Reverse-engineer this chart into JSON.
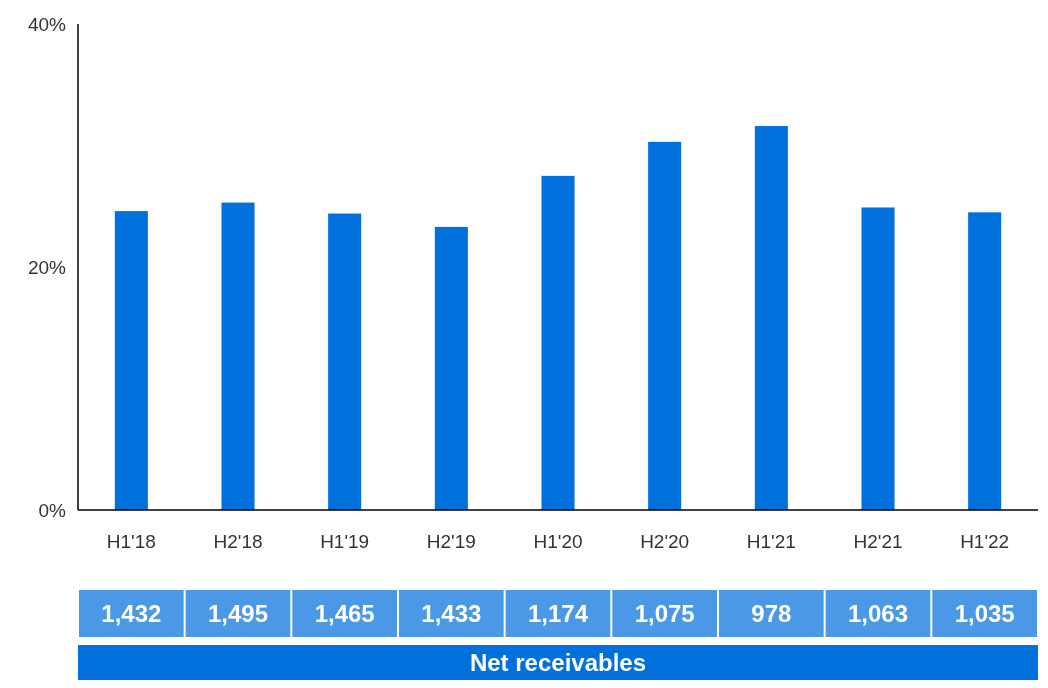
{
  "chart_data": {
    "type": "bar",
    "categories": [
      "H1'18",
      "H2'18",
      "H1'19",
      "H2'19",
      "H1'20",
      "H2'20",
      "H1'21",
      "H2'21",
      "H1'22"
    ],
    "values": [
      24.6,
      25.3,
      24.4,
      23.3,
      27.5,
      30.3,
      31.6,
      24.9,
      24.5
    ],
    "color": "#0070dd",
    "ylim": [
      0,
      40
    ],
    "yticks": [
      {
        "value": 0,
        "label": "0%"
      },
      {
        "value": 20,
        "label": "20%"
      },
      {
        "value": 40,
        "label": "40%"
      }
    ],
    "annotations": [
      "1,432",
      "1,495",
      "1,465",
      "1,433",
      "1,174",
      "1,075",
      "978",
      "1,063",
      "1,035",
      "Net receivables"
    ]
  }
}
